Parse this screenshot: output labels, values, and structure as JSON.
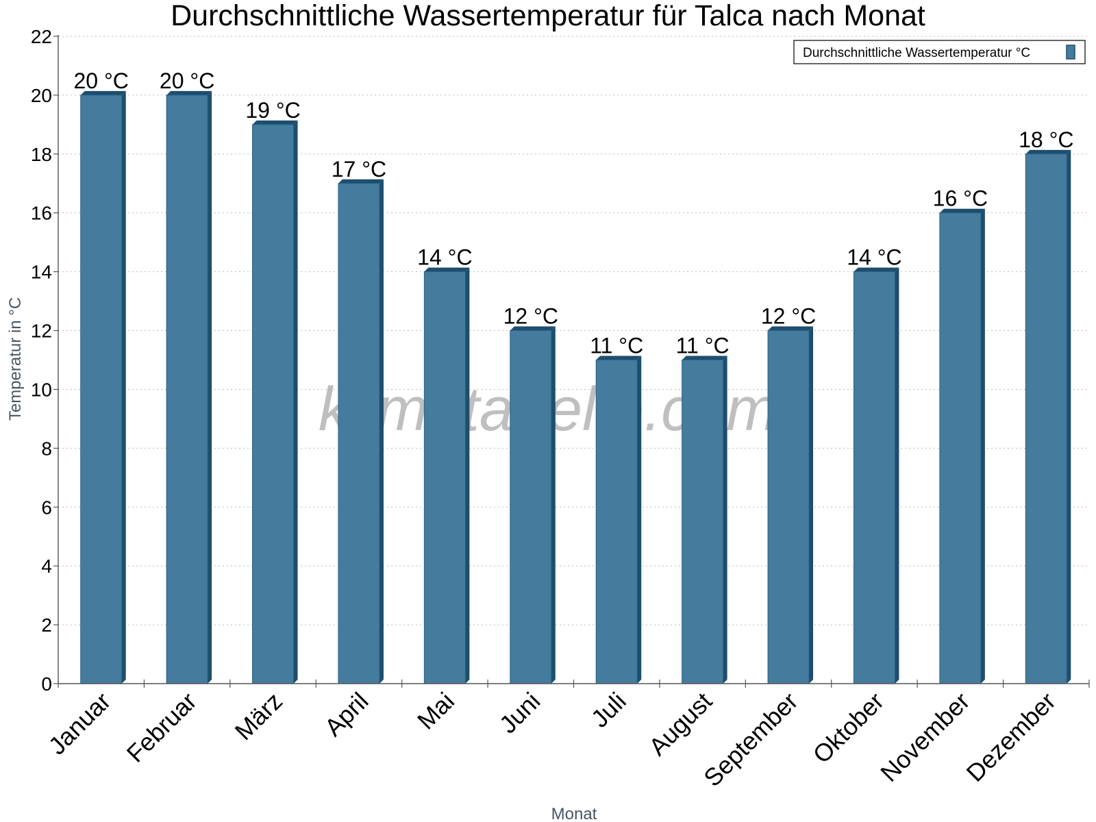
{
  "chart_data": {
    "type": "bar",
    "title": "Durchschnittliche Wassertemperatur für Talca nach Monat",
    "xlabel": "Monat",
    "ylabel": "Temperatur in °C",
    "categories": [
      "Januar",
      "Februar",
      "März",
      "April",
      "Mai",
      "Juni",
      "Juli",
      "August",
      "September",
      "Oktober",
      "November",
      "Dezember"
    ],
    "series": [
      {
        "name": "Durchschnittliche Wassertemperatur °C",
        "values": [
          20,
          20,
          19,
          17,
          14,
          12,
          11,
          11,
          12,
          14,
          16,
          18
        ],
        "labels": [
          "20 °C",
          "20 °C",
          "19 °C",
          "17 °C",
          "14 °C",
          "12 °C",
          "11 °C",
          "11 °C",
          "12 °C",
          "14 °C",
          "16 °C",
          "18 °C"
        ]
      }
    ],
    "ylim": [
      0,
      22
    ],
    "yticks": [
      0,
      2,
      4,
      6,
      8,
      10,
      12,
      14,
      16,
      18,
      20,
      22
    ],
    "grid": true,
    "legend_position": "top-right",
    "colors": {
      "bar": "#457b9d",
      "bar_side": "#1d4e6e",
      "bar_top": "#2a6187"
    }
  },
  "watermark": "klimatabelle.com"
}
